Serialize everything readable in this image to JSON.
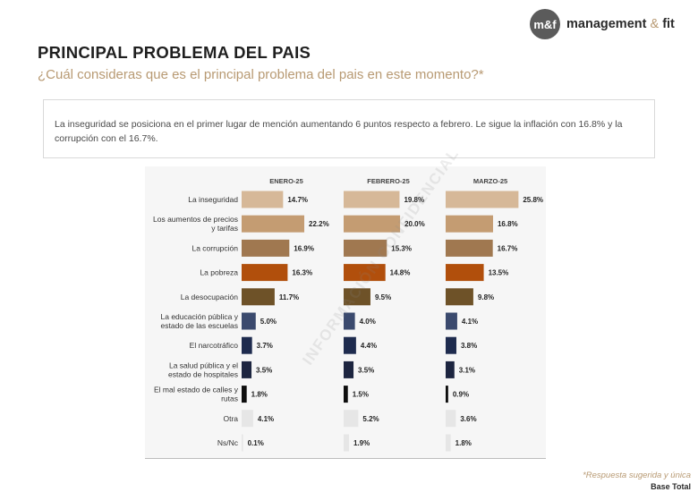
{
  "header": {
    "title": "PRINCIPAL PROBLEMA DEL PAIS",
    "question": "¿Cuál consideras que es el principal problema del pais en este momento?*",
    "summary": "La inseguridad se posiciona en el primer lugar de mención aumentando 6 puntos respecto a febrero. Le sigue la inflación con 16.8% y la corrupción con el 16.7%."
  },
  "logo": {
    "badge": "m&f",
    "name": "management",
    "amp": "&",
    "suffix": "fit"
  },
  "footer": {
    "note": "*Respuesta sugerida y única",
    "base": "Base Total"
  },
  "watermark": "INFORMACIÓN CONFIDENCIAL",
  "chart_data": {
    "type": "bar",
    "orientation": "horizontal",
    "categories": [
      [
        "La inseguridad"
      ],
      [
        "Los aumentos de precios",
        "y tarifas"
      ],
      [
        "La corrupción"
      ],
      [
        "La pobreza"
      ],
      [
        "La desocupación"
      ],
      [
        "La educación pública y",
        "estado de las escuelas"
      ],
      [
        "El narcotráfico"
      ],
      [
        "La salud pública y el",
        "estado de hospitales"
      ],
      [
        "El mal estado de calles y",
        "rutas"
      ],
      [
        "Otra"
      ],
      [
        "Ns/Nc"
      ]
    ],
    "series": [
      {
        "name": "ENERO-25",
        "values": [
          14.7,
          22.2,
          16.9,
          16.3,
          11.7,
          5.0,
          3.7,
          3.5,
          1.8,
          4.1,
          0.1
        ]
      },
      {
        "name": "FEBRERO-25",
        "values": [
          19.8,
          20.0,
          15.3,
          14.8,
          9.5,
          4.0,
          4.4,
          3.5,
          1.5,
          5.2,
          1.9
        ]
      },
      {
        "name": "MARZO-25",
        "values": [
          25.8,
          16.8,
          16.7,
          13.5,
          9.8,
          4.1,
          3.8,
          3.1,
          0.9,
          3.6,
          1.8
        ]
      }
    ],
    "category_colors": [
      "#d6b898",
      "#c49c72",
      "#a07850",
      "#b14f0c",
      "#6e5228",
      "#3b4a6e",
      "#1e2b4e",
      "#1d2540",
      "#0e0e0e",
      "#e6e6e6",
      "#e6e6e6"
    ],
    "value_suffix": "%",
    "xlim": [
      0,
      26
    ]
  }
}
